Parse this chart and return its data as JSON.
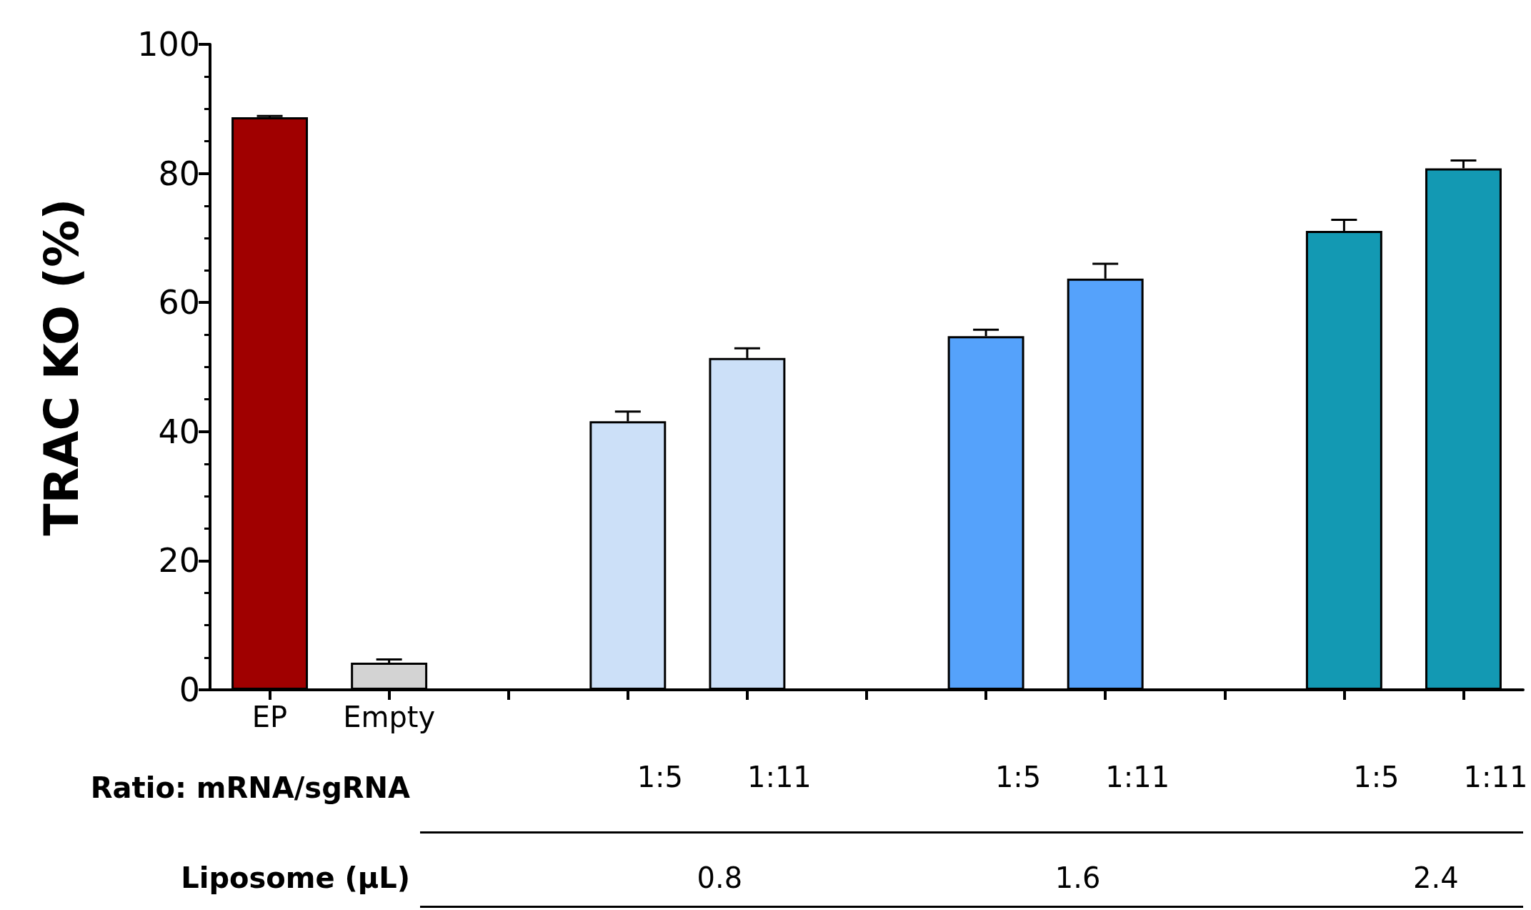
{
  "chart_data": {
    "type": "bar",
    "ylabel": "TRAC KO (%)",
    "categories": [
      "EP",
      "Empty",
      null,
      "1:5",
      "1:11",
      null,
      "1:5",
      "1:11",
      null,
      "1:5",
      "1:11"
    ],
    "values": [
      88.7,
      4.2,
      null,
      41.6,
      51.4,
      null,
      54.8,
      63.7,
      null,
      71.1,
      80.8
    ],
    "colors": [
      "#a00000",
      "#d3d3d3",
      null,
      "#cce0f8",
      "#cce0f8",
      null,
      "#55a2fb",
      "#55a2fb",
      null,
      "#1399b3",
      "#1399b3"
    ],
    "errors": [
      [
        88.7,
        88.9
      ],
      [
        4.2,
        4.7
      ],
      null,
      [
        41.6,
        43.1
      ],
      [
        51.4,
        52.9
      ],
      null,
      [
        54.8,
        55.8
      ],
      [
        63.7,
        66.0
      ],
      null,
      [
        71.1,
        72.8
      ],
      [
        80.8,
        82.0
      ]
    ],
    "ylim": [
      0,
      100
    ],
    "yticks": [
      0,
      20,
      40,
      60,
      80,
      100
    ],
    "grid": false,
    "annotations": [
      "Ratio: mRNA/sgRNA",
      "Liposome (µL)",
      "0.8",
      "1.6",
      "2.4"
    ]
  }
}
